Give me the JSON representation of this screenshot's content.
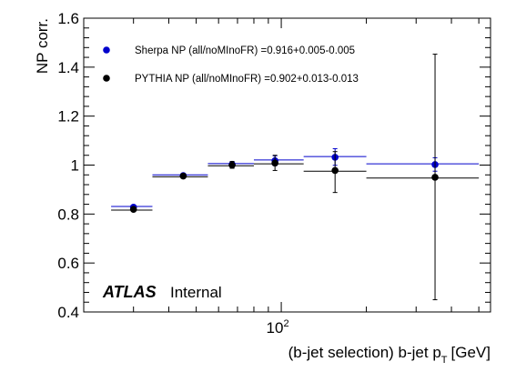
{
  "chart_data": {
    "type": "scatter",
    "xlabel": "(b-jet selection) b-jet p",
    "xlabel_sub": "T",
    "xlabel_unit": "[GeV]",
    "ylabel": "NP corr.",
    "xscale": "log",
    "xlim": [
      20,
      550
    ],
    "ylim": [
      0.4,
      1.6
    ],
    "y_ticks": [
      "0.4",
      "0.6",
      "0.8",
      "1",
      "1.2",
      "1.4",
      "1.6"
    ],
    "x_tick_label": {
      "base": "10",
      "exp": "2",
      "value": 100
    },
    "grid": false,
    "legend_position": "top-left",
    "annotation": {
      "atlas": "ATLAS",
      "status": "Internal"
    },
    "series": [
      {
        "name": "Sherpa NP (all/noMInoFR) =0.916+0.005-0.005",
        "color": "#0000cc",
        "points": [
          {
            "x": 30,
            "xlo": 25,
            "xhi": 35,
            "y": 0.828,
            "ylo": 0.822,
            "yhi": 0.834
          },
          {
            "x": 45,
            "xlo": 35,
            "xhi": 55,
            "y": 0.957,
            "ylo": 0.952,
            "yhi": 0.962
          },
          {
            "x": 67,
            "xlo": 55,
            "xhi": 80,
            "y": 1.003,
            "ylo": 0.993,
            "yhi": 1.013
          },
          {
            "x": 95,
            "xlo": 80,
            "xhi": 120,
            "y": 1.018,
            "ylo": 0.998,
            "yhi": 1.038
          },
          {
            "x": 155,
            "xlo": 120,
            "xhi": 200,
            "y": 1.032,
            "ylo": 0.999,
            "yhi": 1.067
          },
          {
            "x": 350,
            "xlo": 200,
            "xhi": 500,
            "y": 1.002,
            "ylo": 0.975,
            "yhi": 1.03
          }
        ]
      },
      {
        "name": "PYTHIA NP (all/noMInoFR) =0.902+0.013-0.013",
        "color": "#000000",
        "points": [
          {
            "x": 30,
            "xlo": 25,
            "xhi": 35,
            "y": 0.819,
            "ylo": 0.812,
            "yhi": 0.826
          },
          {
            "x": 45,
            "xlo": 35,
            "xhi": 55,
            "y": 0.955,
            "ylo": 0.95,
            "yhi": 0.96
          },
          {
            "x": 67,
            "xlo": 55,
            "xhi": 80,
            "y": 1.0,
            "ylo": 0.987,
            "yhi": 1.015
          },
          {
            "x": 95,
            "xlo": 80,
            "xhi": 120,
            "y": 1.008,
            "ylo": 0.978,
            "yhi": 1.04
          },
          {
            "x": 155,
            "xlo": 120,
            "xhi": 200,
            "y": 0.978,
            "ylo": 0.888,
            "yhi": 1.055
          },
          {
            "x": 350,
            "xlo": 200,
            "xhi": 500,
            "y": 0.95,
            "ylo": 0.45,
            "yhi": 1.453
          }
        ]
      }
    ]
  }
}
